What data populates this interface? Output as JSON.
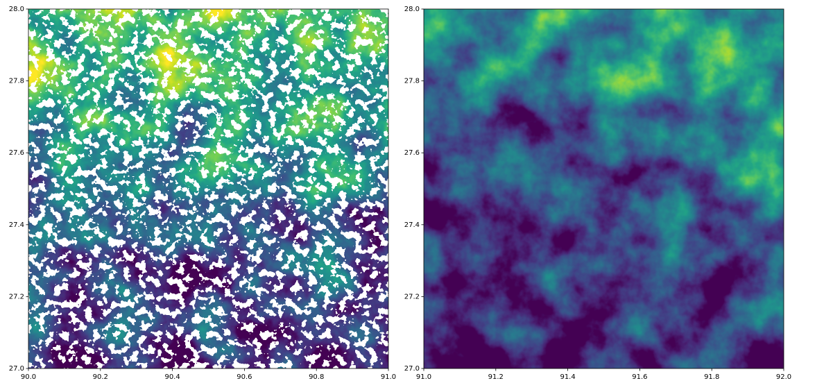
{
  "chart_data": [
    {
      "type": "image",
      "xlim": [
        90,
        91
      ],
      "ylim": [
        27,
        28
      ],
      "xticks": [
        {
          "value": 90,
          "label": "90.0"
        },
        90.2,
        90.4,
        90.6,
        90.8,
        {
          "value": 91,
          "label": "91.0"
        }
      ],
      "yticks": [
        {
          "value": 27,
          "label": "27.0"
        },
        27.2,
        27.4,
        27.6,
        27.8,
        {
          "value": 28,
          "label": "28.0"
        }
      ]
    },
    {
      "type": "image",
      "xlim": [
        91,
        92
      ],
      "ylim": [
        27,
        28
      ],
      "xticks": [
        {
          "value": 91,
          "label": "91.0"
        },
        91.2,
        91.4,
        91.6,
        91.8,
        {
          "value": 92,
          "label": "92.0"
        }
      ],
      "yticks": [
        {
          "value": 27,
          "label": "27.0"
        },
        27.2,
        27.4,
        27.6,
        27.8,
        {
          "value": 28,
          "label": "28.0"
        }
      ]
    }
  ]
}
